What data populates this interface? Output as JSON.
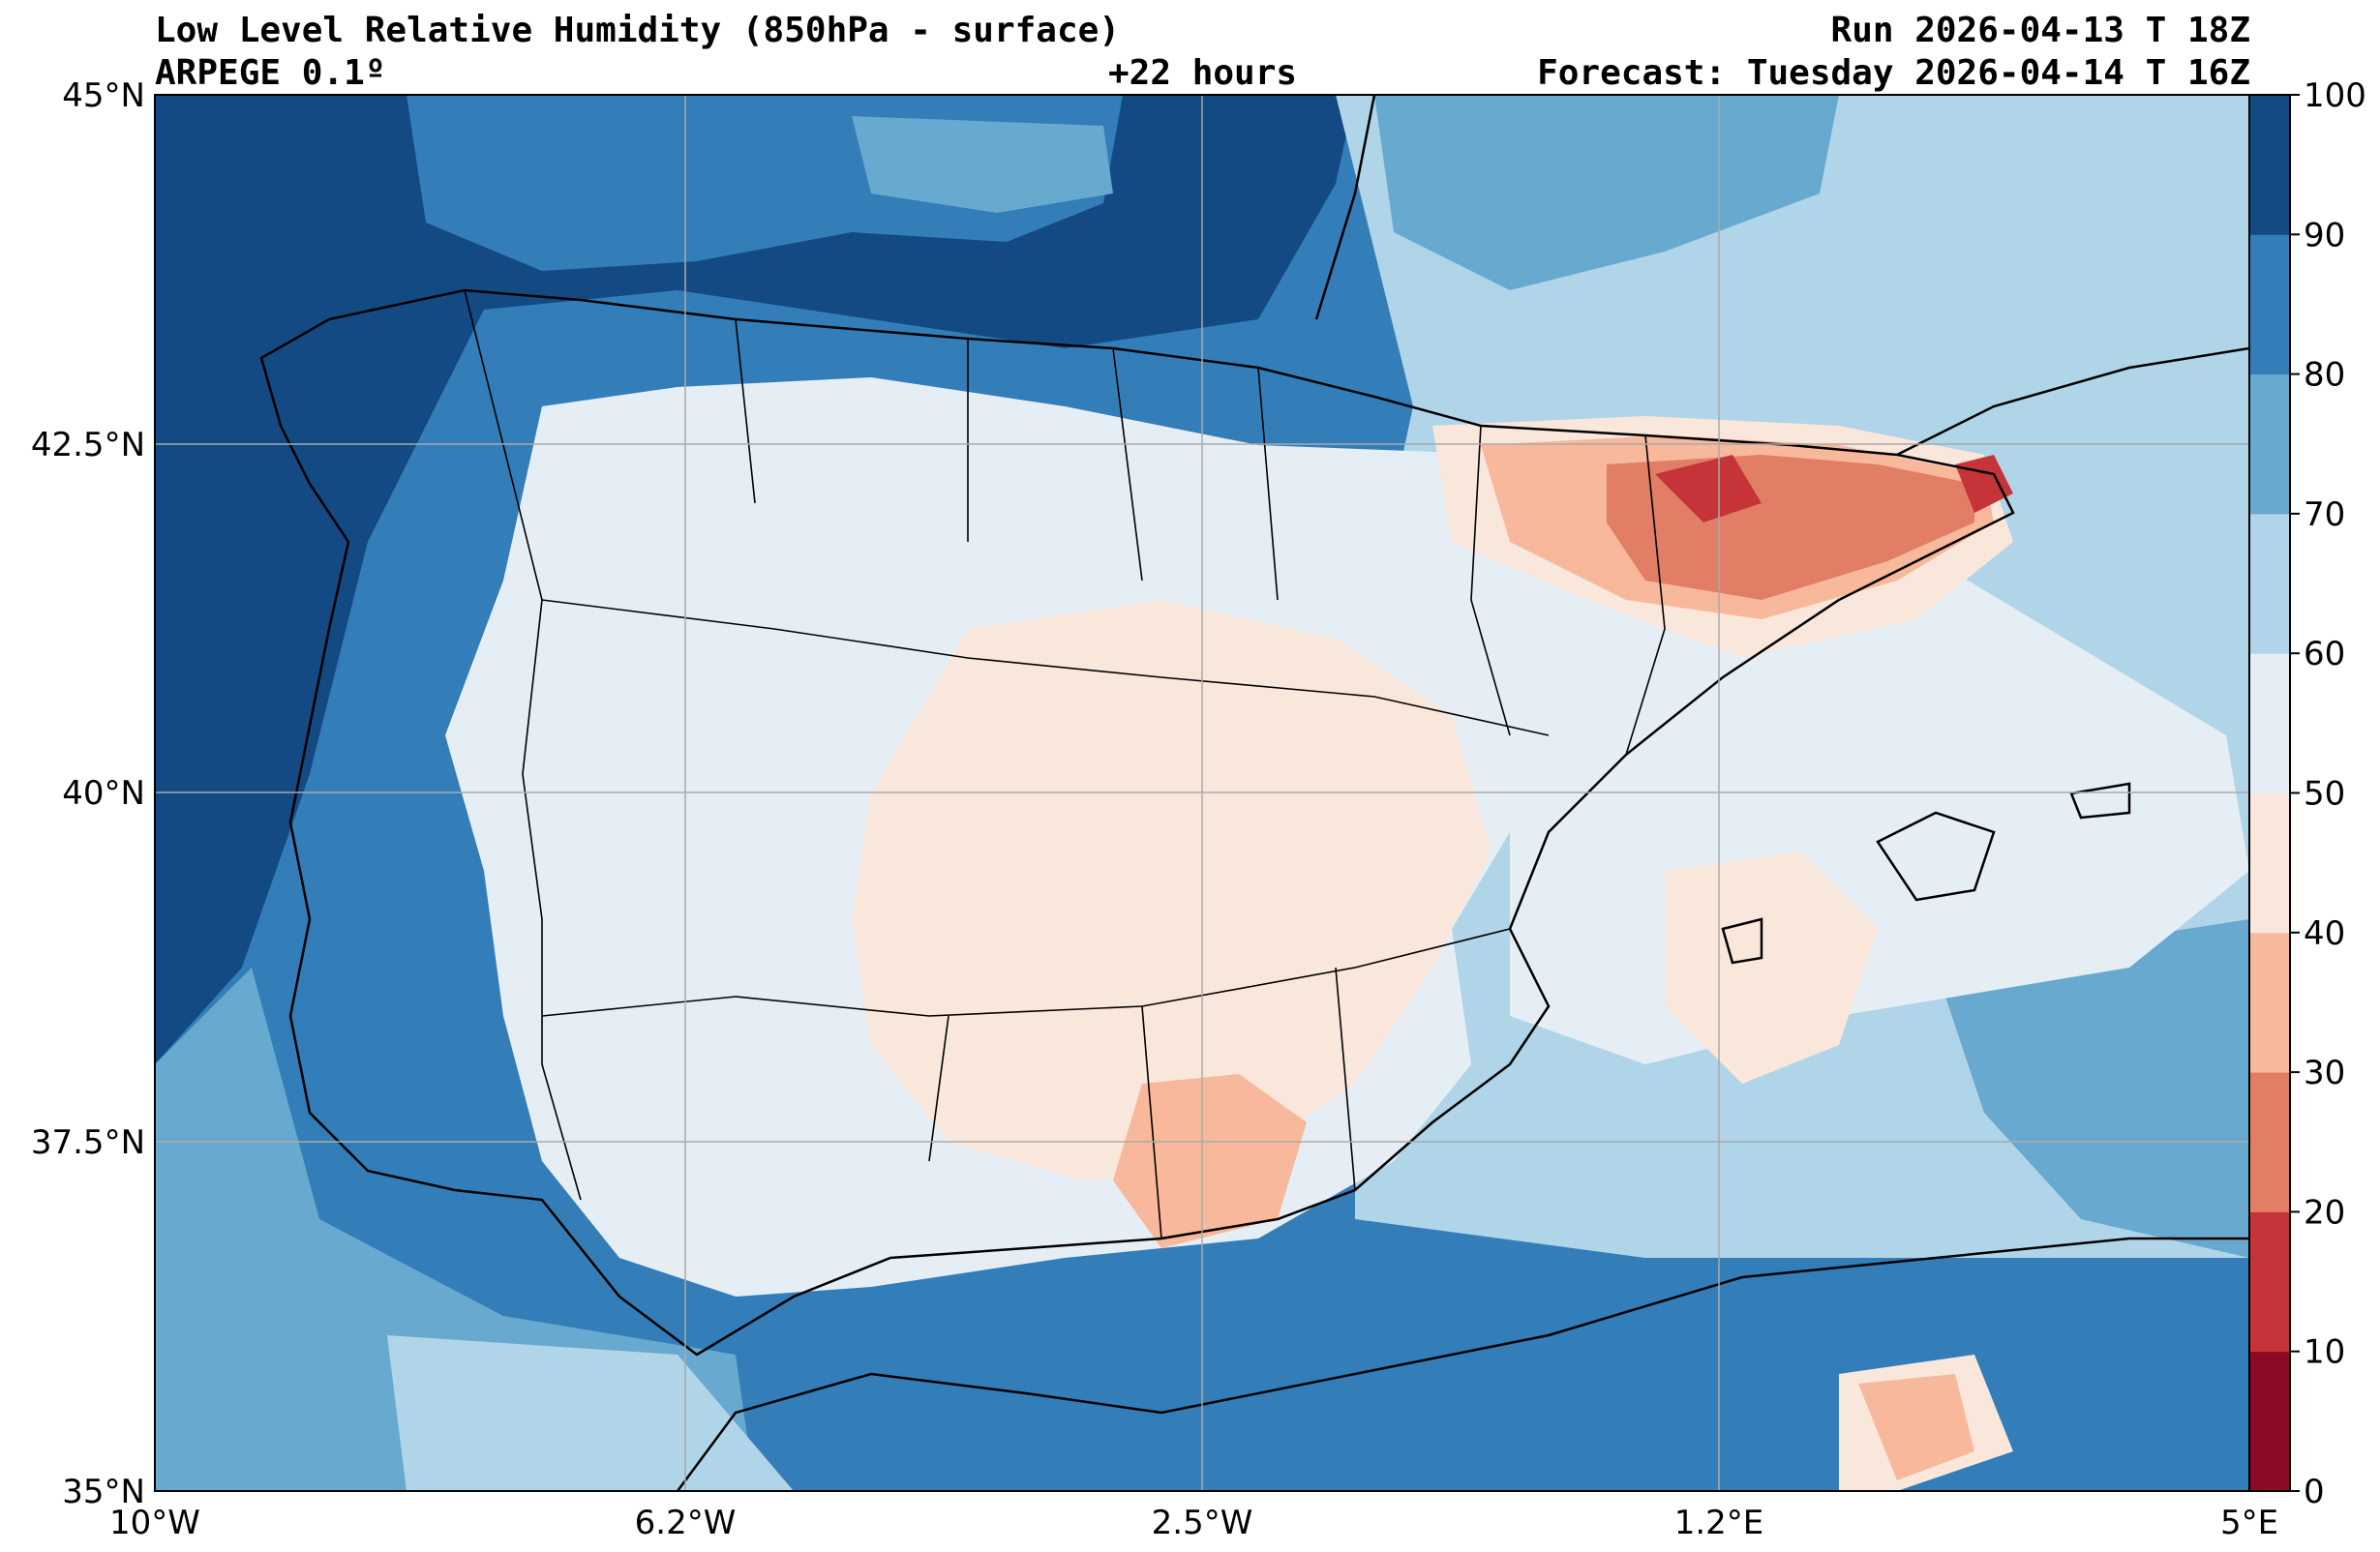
{
  "header": {
    "title": "Low Level Relative Humidity (850hPa - surface)",
    "run": "Run 2026-04-13 T 18Z",
    "model": "ARPEGE 0.1º",
    "lead_time": "+22 hours",
    "forecast": "Forecast: Tuesday 2026-04-14 T 16Z"
  },
  "map": {
    "extent": {
      "lon_min": -10,
      "lon_max": 5,
      "lat_min": 35,
      "lat_max": 45
    },
    "x_ticks": [
      {
        "lon": -10,
        "label": "10°W"
      },
      {
        "lon": -6.2,
        "label": "6.2°W"
      },
      {
        "lon": -2.5,
        "label": "2.5°W"
      },
      {
        "lon": 1.2,
        "label": "1.2°E"
      },
      {
        "lon": 5,
        "label": "5°E"
      }
    ],
    "y_ticks": [
      {
        "lat": 45,
        "label": "45°N"
      },
      {
        "lat": 42.5,
        "label": "42.5°N"
      },
      {
        "lat": 40,
        "label": "40°N"
      },
      {
        "lat": 37.5,
        "label": "37.5°N"
      },
      {
        "lat": 35,
        "label": "35°N"
      }
    ],
    "grid": true
  },
  "colorbar": {
    "levels": [
      0,
      10,
      20,
      30,
      40,
      50,
      60,
      70,
      80,
      90,
      100
    ],
    "labels": [
      "0",
      "10",
      "20",
      "30",
      "40",
      "50",
      "60",
      "70",
      "80",
      "90",
      "100"
    ],
    "colors": [
      "#8b0a26",
      "#c6343a",
      "#e27d66",
      "#f7b89c",
      "#fae7dc",
      "#e6eef5",
      "#b1d5e8",
      "#68a9d0",
      "#337eb9",
      "#134a84"
    ]
  }
}
